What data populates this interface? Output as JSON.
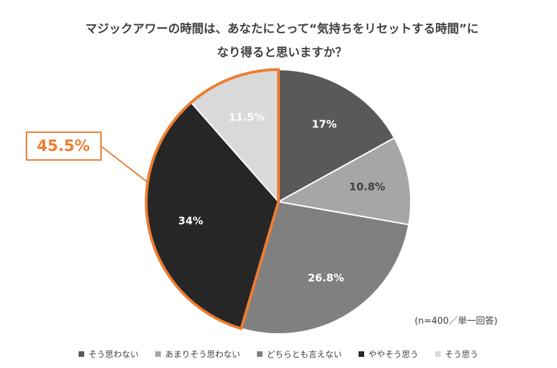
{
  "chart_data": {
    "type": "pie",
    "title": [
      "マジックアワーの時間は、あなたにとって“気持ちをリセットする時間”に",
      "なり得ると思いますか？"
    ],
    "categories": [
      "そう思わない",
      "あまりそう思わない",
      "どちらとも言えない",
      "ややそう思う",
      "そう思う"
    ],
    "values": [
      17,
      10.8,
      26.8,
      34,
      11.5
    ],
    "value_labels": [
      "17%",
      "10.8%",
      "26.8%",
      "34%",
      "11.5%"
    ],
    "colors": [
      "#595959",
      "#a6a6a6",
      "#808080",
      "#262626",
      "#d9d9d9"
    ],
    "annotation": "45.5%",
    "annotation_color": "#ed7d31",
    "note": "(n=400／単一回答)",
    "legend": "bottom"
  }
}
